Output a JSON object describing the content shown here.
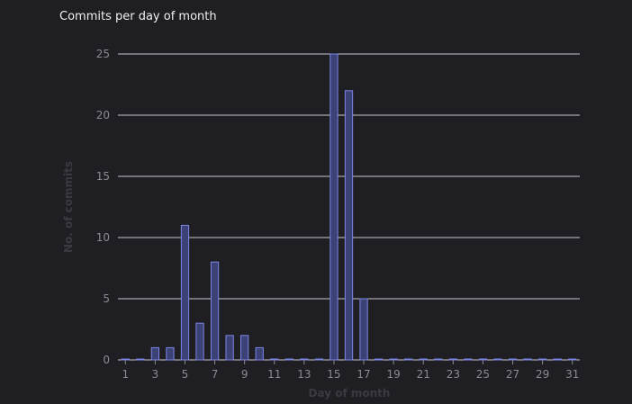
{
  "colors": {
    "background": "#1f1e23",
    "grid": "#c9c8cf",
    "bar_fill": "#3c4276",
    "bar_stroke": "#7b86e4",
    "tick": "#8b8a90",
    "axis_title": "#3b3a40"
  },
  "chart_data": {
    "type": "bar",
    "title": "Commits per day of month",
    "xlabel": "Day of month",
    "ylabel": "No. of commits",
    "categories": [
      1,
      2,
      3,
      4,
      5,
      6,
      7,
      8,
      9,
      10,
      11,
      12,
      13,
      14,
      15,
      16,
      17,
      18,
      19,
      20,
      21,
      22,
      23,
      24,
      25,
      26,
      27,
      28,
      29,
      30,
      31
    ],
    "x_tick_labels": [
      "1",
      "3",
      "5",
      "7",
      "9",
      "11",
      "13",
      "15",
      "17",
      "19",
      "21",
      "23",
      "25",
      "27",
      "29",
      "31"
    ],
    "values": [
      0,
      0,
      1,
      1,
      11,
      3,
      8,
      2,
      2,
      1,
      0,
      0,
      0,
      0,
      25,
      22,
      5,
      0,
      0,
      0,
      0,
      0,
      0,
      0,
      0,
      0,
      0,
      0,
      0,
      0,
      0
    ],
    "ylim": [
      0,
      25
    ],
    "y_ticks": [
      0,
      5,
      10,
      15,
      20,
      25
    ],
    "grid": true,
    "legend": "none"
  }
}
